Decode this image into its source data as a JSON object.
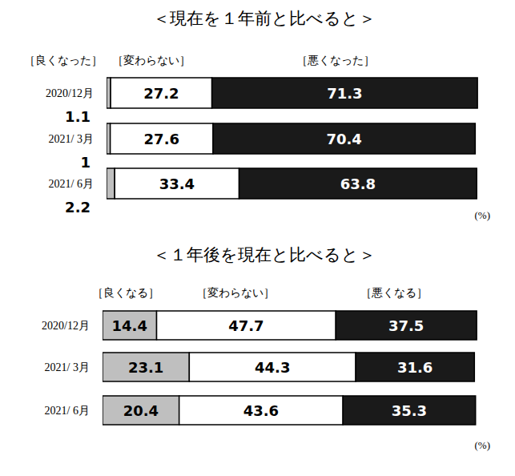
{
  "chart_data": [
    {
      "type": "bar",
      "orientation": "horizontal",
      "stacked": true,
      "data_labels": true,
      "tick_labels": "y",
      "title": "＜現在を１年前と比べると＞",
      "annotation": "(%)",
      "categories": [
        "2020/12月",
        "2021/ 3月",
        "2021/ 6月"
      ],
      "xlim": [
        0,
        100
      ],
      "series": [
        {
          "name": "［良くなった］",
          "color": "#bfbfbf",
          "values": [
            1.1,
            1.0,
            2.2
          ]
        },
        {
          "name": "［変わらない］",
          "color": "#ffffff",
          "values": [
            27.2,
            27.6,
            33.4
          ]
        },
        {
          "name": "［悪くなった］",
          "color": "#1a1a1a",
          "values": [
            71.3,
            70.4,
            63.8
          ]
        }
      ]
    },
    {
      "type": "bar",
      "orientation": "horizontal",
      "stacked": true,
      "data_labels": true,
      "tick_labels": "y",
      "title": "＜１年後を現在と比べると＞",
      "annotation": "(%)",
      "categories": [
        "2020/12月",
        "2021/ 3月",
        "2021/ 6月"
      ],
      "xlim": [
        0,
        100
      ],
      "series": [
        {
          "name": "［良くなる］",
          "color": "#bfbfbf",
          "values": [
            14.4,
            23.1,
            20.4
          ]
        },
        {
          "name": "［変わらない］",
          "color": "#ffffff",
          "values": [
            47.7,
            44.3,
            43.6
          ]
        },
        {
          "name": "［悪くなる］",
          "color": "#1a1a1a",
          "values": [
            37.5,
            31.6,
            35.3
          ]
        }
      ]
    }
  ]
}
